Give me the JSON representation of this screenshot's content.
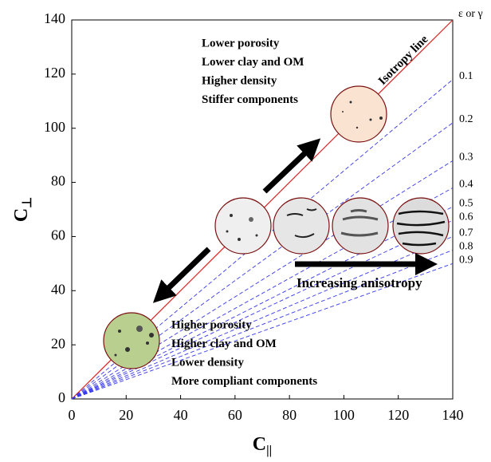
{
  "chart_data": {
    "type": "line",
    "xlabel": {
      "text": "C",
      "subscript": "||"
    },
    "ylabel": {
      "text": "C",
      "subscript": "⊥"
    },
    "xlim": [
      0,
      140
    ],
    "ylim": [
      0,
      140
    ],
    "xticks": [
      0,
      20,
      40,
      60,
      80,
      100,
      120,
      140
    ],
    "yticks": [
      0,
      20,
      40,
      60,
      80,
      100,
      120,
      140
    ],
    "legend_title": "ε or γ",
    "series": [
      {
        "name": "Isotropy line",
        "color": "#e02020",
        "dashed": false,
        "x": [
          0,
          140
        ],
        "values": [
          0,
          140
        ]
      },
      {
        "name": "0.1",
        "color": "#3838f0",
        "dashed": true,
        "x": [
          0,
          140
        ],
        "values": [
          0,
          118
        ]
      },
      {
        "name": "0.2",
        "color": "#3838f0",
        "dashed": true,
        "x": [
          0,
          140
        ],
        "values": [
          0,
          102
        ]
      },
      {
        "name": "0.3",
        "color": "#3838f0",
        "dashed": true,
        "x": [
          0,
          140
        ],
        "values": [
          0,
          88
        ]
      },
      {
        "name": "0.4",
        "color": "#3838f0",
        "dashed": true,
        "x": [
          0,
          140
        ],
        "values": [
          0,
          78
        ]
      },
      {
        "name": "0.5",
        "color": "#3838f0",
        "dashed": true,
        "x": [
          0,
          140
        ],
        "values": [
          0,
          71
        ]
      },
      {
        "name": "0.6",
        "color": "#3838f0",
        "dashed": true,
        "x": [
          0,
          140
        ],
        "values": [
          0,
          66
        ]
      },
      {
        "name": "0.7",
        "color": "#3838f0",
        "dashed": true,
        "x": [
          0,
          140
        ],
        "values": [
          0,
          60
        ]
      },
      {
        "name": "0.8",
        "color": "#3838f0",
        "dashed": true,
        "x": [
          0,
          140
        ],
        "values": [
          0,
          55
        ]
      },
      {
        "name": "0.9",
        "color": "#3838f0",
        "dashed": true,
        "x": [
          0,
          140
        ],
        "values": [
          0,
          50
        ]
      }
    ],
    "annotations": {
      "top": [
        "Lower porosity",
        "Lower clay and OM",
        "Higher density",
        "Stiffer components"
      ],
      "bottom": [
        "Higher porosity",
        "Higher clay and OM",
        "Lower density",
        "More compliant components"
      ],
      "arrow": "Increasing anisotropy"
    }
  }
}
